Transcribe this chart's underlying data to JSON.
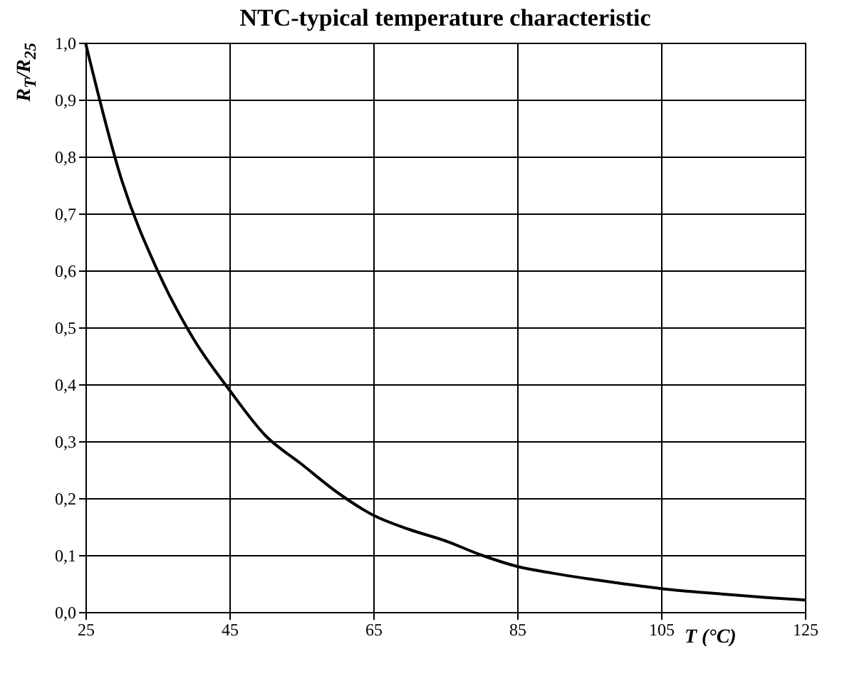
{
  "chart_data": {
    "type": "line",
    "title": "NTC-typical temperature characteristic",
    "xlabel": "T (°C)",
    "ylabel": "R$_{T}$/R$_{25}$",
    "x": [
      25,
      30,
      35,
      40,
      45,
      50,
      55,
      60,
      65,
      70,
      75,
      80,
      85,
      90,
      95,
      100,
      105,
      110,
      115,
      120,
      125
    ],
    "series": [
      {
        "color": "#000000",
        "values": [
          1.0,
          0.76,
          0.6,
          0.48,
          0.39,
          0.31,
          0.26,
          0.21,
          0.17,
          0.145,
          0.125,
          0.1,
          0.08,
          0.068,
          0.058,
          0.049,
          0.041,
          0.035,
          0.03,
          0.025,
          0.021
        ]
      }
    ],
    "xlim": [
      25,
      125
    ],
    "xticks": [
      25,
      45,
      65,
      85,
      105,
      125
    ],
    "ylim": [
      0,
      1
    ],
    "yticks": [
      {
        "value": 0,
        "label": "0,0"
      },
      {
        "value": 0.1,
        "label": "0,1"
      },
      {
        "value": 0.2,
        "label": "0,2"
      },
      {
        "value": 0.3,
        "label": "0,3"
      },
      {
        "value": 0.4,
        "label": "0,4"
      },
      {
        "value": 0.5,
        "label": "0,5"
      },
      {
        "value": 0.6,
        "label": "0,6"
      },
      {
        "value": 0.7,
        "label": "0,7"
      },
      {
        "value": 0.8,
        "label": "0,8"
      },
      {
        "value": 0.9,
        "label": "0,9"
      },
      {
        "value": 1,
        "label": "1,0"
      }
    ],
    "grid": true,
    "marker": "none",
    "line_style": "solid"
  }
}
